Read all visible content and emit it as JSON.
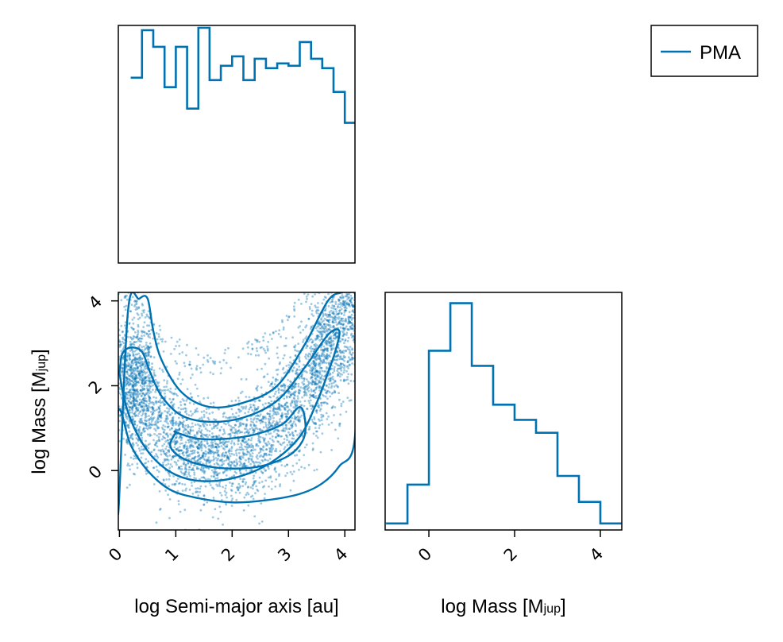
{
  "legend": {
    "label": "PMA",
    "color": "#0072b2"
  },
  "chart_data": [
    {
      "type": "histogram",
      "panel": "marginal-semimajor-axis",
      "xlim": [
        -0.02,
        4.18
      ],
      "bin_edges": [
        0.2,
        0.4,
        0.6,
        0.8,
        1.0,
        1.2,
        1.4,
        1.6,
        1.8,
        2.0,
        2.2,
        2.4,
        2.6,
        2.8,
        3.0,
        3.2,
        3.4,
        3.6,
        3.8,
        4.0,
        4.18
      ],
      "counts": [
        78,
        98,
        91,
        74,
        91,
        65,
        99,
        77,
        83,
        87,
        77,
        86,
        82,
        84,
        83,
        93,
        86,
        82,
        72,
        59
      ],
      "ylim": [
        0,
        100
      ],
      "grid": false
    },
    {
      "type": "scatter",
      "panel": "joint",
      "xlabel": "log Semi-major axis [au]",
      "ylabel": "log Mass [Mjup]",
      "xlim": [
        -0.02,
        4.18
      ],
      "ylim": [
        -1.4,
        4.2
      ],
      "xticks": [
        0,
        1,
        2,
        3,
        4
      ],
      "yticks": [
        0,
        2,
        4
      ],
      "xticklabels": [
        "0",
        "1",
        "2",
        "3",
        "4"
      ],
      "yticklabels": [
        "0",
        "2",
        "4"
      ],
      "n_points": 4500,
      "contours": [
        {
          "level": "outer",
          "x": [
            -0.02,
            0.15,
            0.35,
            0.5,
            0.6,
            0.75,
            1.1,
            1.6,
            2.2,
            2.8,
            3.3,
            3.7,
            3.95,
            4.18,
            4.18,
            3.9,
            3.6,
            3.2,
            2.6,
            2.0,
            1.4,
            0.9,
            0.5,
            0.2,
            -0.02
          ],
          "y": [
            -1.0,
            3.75,
            4.05,
            4.05,
            3.3,
            2.6,
            1.85,
            1.5,
            1.6,
            2.0,
            3.0,
            4.0,
            4.2,
            4.2,
            0.8,
            0.1,
            -0.3,
            -0.55,
            -0.7,
            -0.75,
            -0.65,
            -0.45,
            0.0,
            0.6,
            1.4
          ]
        },
        {
          "level": "middle",
          "x": [
            0.0,
            0.05,
            0.2,
            0.4,
            0.55,
            0.75,
            1.1,
            1.6,
            2.2,
            2.8,
            3.3,
            3.7,
            3.9,
            3.85,
            3.7,
            3.5,
            3.2,
            2.7,
            2.1,
            1.5,
            1.0,
            0.6,
            0.3,
            0.1,
            0.0
          ],
          "y": [
            2.3,
            2.75,
            2.9,
            2.8,
            2.3,
            1.75,
            1.3,
            1.15,
            1.25,
            1.65,
            2.45,
            3.2,
            3.3,
            2.9,
            2.3,
            1.6,
            0.8,
            0.2,
            -0.15,
            -0.25,
            -0.1,
            0.3,
            0.9,
            1.6,
            2.3
          ]
        },
        {
          "level": "inner",
          "x": [
            1.0,
            1.4,
            1.9,
            2.4,
            2.9,
            3.2,
            3.3,
            3.25,
            3.0,
            2.5,
            1.9,
            1.4,
            1.05,
            0.9,
            1.0
          ],
          "y": [
            0.9,
            0.75,
            0.75,
            0.85,
            1.1,
            1.5,
            1.1,
            0.7,
            0.35,
            0.1,
            0.05,
            0.15,
            0.35,
            0.6,
            0.9
          ]
        }
      ],
      "grid": false
    },
    {
      "type": "histogram",
      "panel": "marginal-mass",
      "xlabel": "log Mass [Mjup]",
      "xlim": [
        -1.02,
        4.5
      ],
      "xticks": [
        0,
        2,
        4
      ],
      "xticklabels": [
        "0",
        "2",
        "4"
      ],
      "bin_edges": [
        -1.0,
        -0.5,
        0.0,
        0.5,
        1.0,
        1.5,
        2.0,
        2.5,
        3.0,
        3.5,
        4.0,
        4.5
      ],
      "counts": [
        3,
        21,
        83,
        105,
        76,
        58,
        51,
        45,
        25,
        13,
        3
      ],
      "ylim": [
        0,
        110
      ],
      "grid": false
    }
  ]
}
